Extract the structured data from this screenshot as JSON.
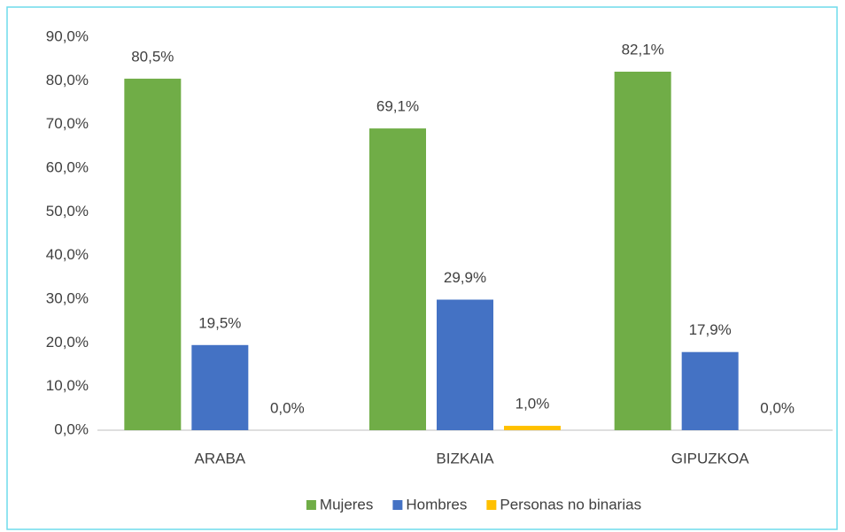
{
  "chart_data": {
    "type": "bar",
    "categories": [
      "ARABA",
      "BIZKAIA",
      "GIPUZKOA"
    ],
    "series": [
      {
        "name": "Mujeres",
        "color": "#70ad47",
        "values": [
          80.5,
          69.1,
          82.1
        ],
        "value_labels": [
          "80,5%",
          "69,1%",
          "82,1%"
        ]
      },
      {
        "name": "Hombres",
        "color": "#4472c4",
        "values": [
          19.5,
          29.9,
          17.9
        ],
        "value_labels": [
          "19,5%",
          "29,9%",
          "17,9%"
        ]
      },
      {
        "name": "Personas no binarias",
        "color": "#ffc000",
        "values": [
          0.0,
          1.0,
          0.0
        ],
        "value_labels": [
          "0,0%",
          "1,0%",
          "0,0%"
        ]
      }
    ],
    "ylim": [
      0,
      90
    ],
    "yticks": [
      {
        "value": 0,
        "label": "0,0%"
      },
      {
        "value": 10,
        "label": "10,0%"
      },
      {
        "value": 20,
        "label": "20,0%"
      },
      {
        "value": 30,
        "label": "30,0%"
      },
      {
        "value": 40,
        "label": "40,0%"
      },
      {
        "value": 50,
        "label": "50,0%"
      },
      {
        "value": 60,
        "label": "60,0%"
      },
      {
        "value": 70,
        "label": "70,0%"
      },
      {
        "value": 80,
        "label": "80,0%"
      },
      {
        "value": 90,
        "label": "90,0%"
      }
    ],
    "grid": false,
    "legend": "bottom"
  }
}
